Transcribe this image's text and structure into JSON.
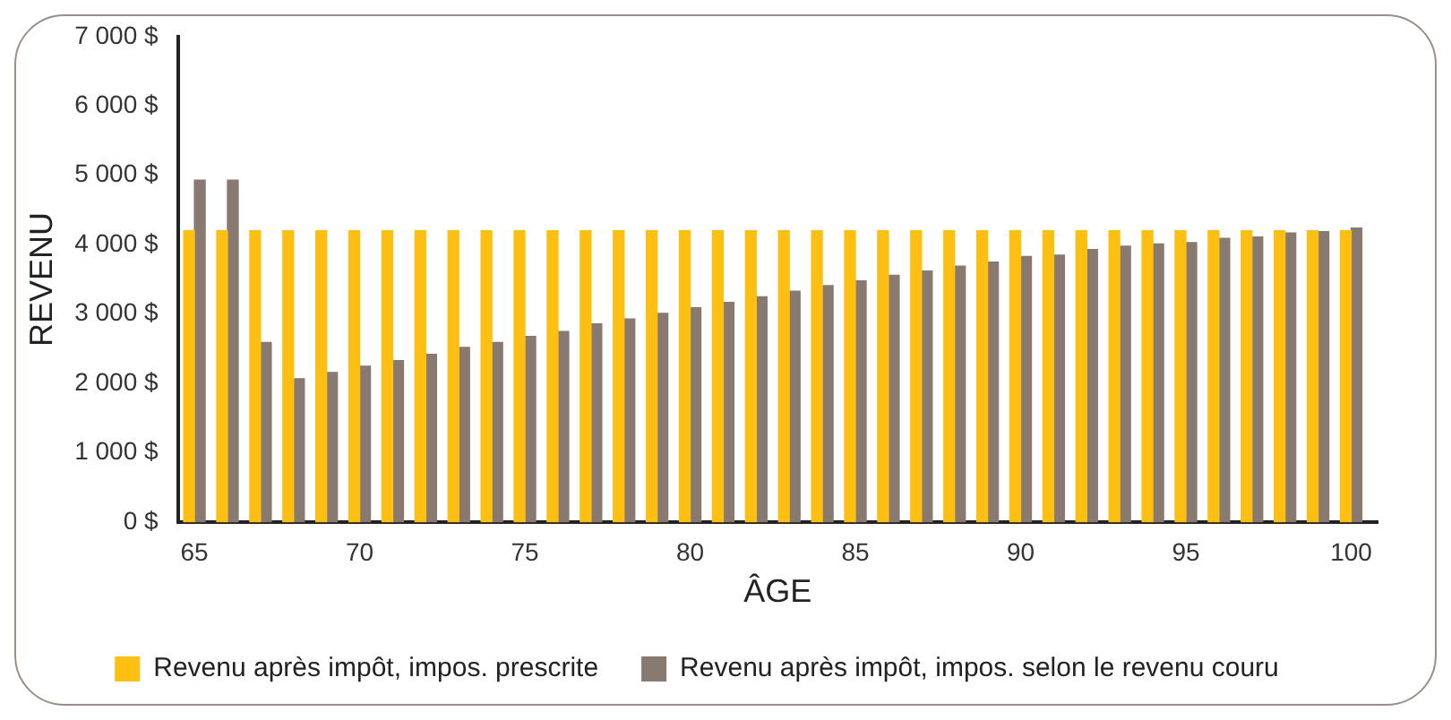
{
  "chart_data": {
    "type": "bar",
    "xlabel": "ÂGE",
    "ylabel": "REVENU",
    "x": [
      65,
      66,
      67,
      68,
      69,
      70,
      71,
      72,
      73,
      74,
      75,
      76,
      77,
      78,
      79,
      80,
      81,
      82,
      83,
      84,
      85,
      86,
      87,
      88,
      89,
      90,
      91,
      92,
      93,
      94,
      95,
      96,
      97,
      98,
      99,
      100
    ],
    "series": [
      {
        "name": "Revenu après impôt, impos. prescrite",
        "color": "#fdbf11",
        "values": [
          4200,
          4200,
          4200,
          4200,
          4200,
          4200,
          4200,
          4200,
          4200,
          4200,
          4200,
          4200,
          4200,
          4200,
          4200,
          4200,
          4200,
          4200,
          4200,
          4200,
          4200,
          4200,
          4200,
          4200,
          4200,
          4200,
          4200,
          4200,
          4200,
          4200,
          4200,
          4200,
          4200,
          4200,
          4200,
          4200
        ]
      },
      {
        "name": "Revenu après impôt, impos. selon le revenu couru",
        "color": "#887a70",
        "values": [
          4930,
          4930,
          2590,
          2070,
          2160,
          2250,
          2330,
          2420,
          2520,
          2590,
          2680,
          2750,
          2860,
          2930,
          3010,
          3090,
          3170,
          3250,
          3330,
          3410,
          3480,
          3560,
          3620,
          3690,
          3750,
          3830,
          3850,
          3930,
          3980,
          4010,
          4030,
          4090,
          4110,
          4170,
          4190,
          4240
        ]
      }
    ],
    "xlim": [
      64.5,
      100.8
    ],
    "xticks": [
      65,
      70,
      75,
      80,
      85,
      90,
      95,
      100
    ],
    "ylim": [
      0,
      7000
    ],
    "yticks": [
      {
        "value": 0,
        "label": "0 $"
      },
      {
        "value": 1000,
        "label": "1 000 $"
      },
      {
        "value": 2000,
        "label": "2 000 $"
      },
      {
        "value": 3000,
        "label": "3 000 $"
      },
      {
        "value": 4000,
        "label": "4 000 $"
      },
      {
        "value": 5000,
        "label": "5 000 $"
      },
      {
        "value": 6000,
        "label": "6 000 $"
      },
      {
        "value": 7000,
        "label": "7 000 $"
      }
    ],
    "grid": false,
    "legend": "bottom"
  }
}
